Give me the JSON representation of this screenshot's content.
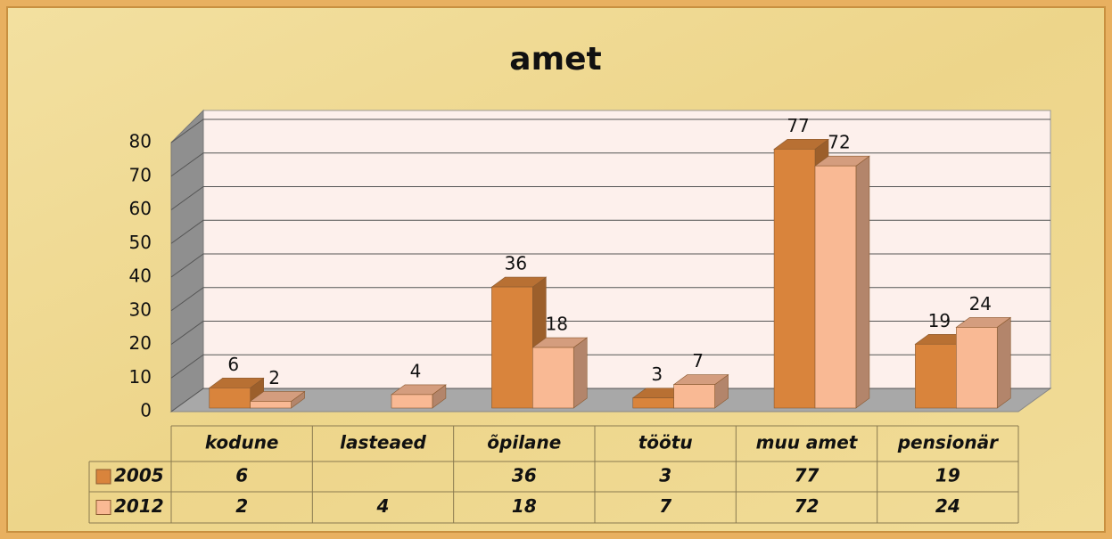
{
  "chart_data": {
    "type": "bar3d",
    "title": "amet",
    "categories": [
      "kodune",
      "lasteaed",
      "õpilane",
      "töötu",
      "muu amet",
      "pensionär"
    ],
    "series": [
      {
        "name": "2005",
        "color": "#d9843c",
        "values": [
          6,
          null,
          36,
          3,
          77,
          19
        ]
      },
      {
        "name": "2012",
        "color": "#f9b994",
        "values": [
          2,
          4,
          18,
          7,
          72,
          24
        ]
      }
    ],
    "ylim": [
      0,
      80
    ],
    "yticks": [
      0,
      10,
      20,
      30,
      40,
      50,
      60,
      70,
      80
    ],
    "grid": true,
    "data_table": true
  }
}
